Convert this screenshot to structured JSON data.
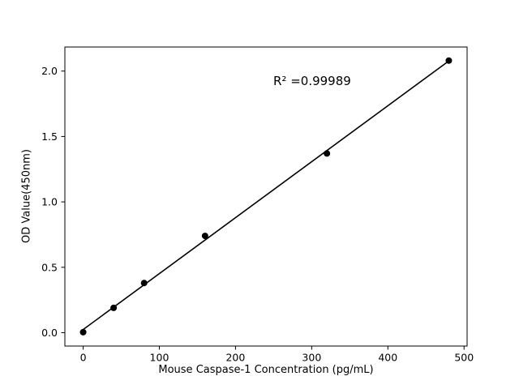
{
  "chart_data": {
    "type": "scatter",
    "title": "",
    "xlabel": "Mouse Caspase-1 Concentration (pg/mL)",
    "ylabel": "OD Value(450nm)",
    "x": [
      0,
      40,
      80,
      160,
      320,
      480
    ],
    "y": [
      0.004,
      0.19,
      0.38,
      0.74,
      1.37,
      2.08
    ],
    "fit_line": true,
    "annotation": {
      "text": "R² =0.99989",
      "x": 250,
      "y": 1.9
    },
    "xlim": [
      -24,
      504
    ],
    "ylim": [
      -0.102,
      2.184
    ],
    "xticks": [
      0,
      100,
      200,
      300,
      400,
      500
    ],
    "yticks": [
      0.0,
      0.5,
      1.0,
      1.5,
      2.0
    ],
    "grid": false,
    "legend_position": "none",
    "marker_color": "#000000",
    "line_color": "#000000",
    "axis_color": "#000000",
    "background_color": "#ffffff"
  }
}
